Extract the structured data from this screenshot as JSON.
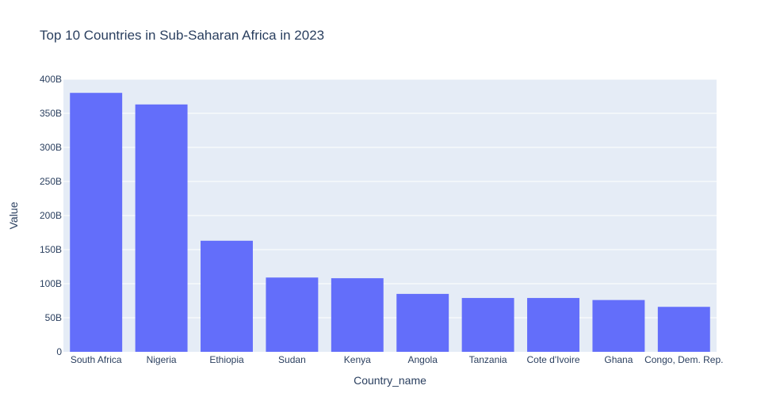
{
  "chart_data": {
    "type": "bar",
    "title": "Top 10 Countries in Sub-Saharan Africa in 2023",
    "xlabel": "Country_name",
    "ylabel": "Value",
    "categories": [
      "South Africa",
      "Nigeria",
      "Ethiopia",
      "Sudan",
      "Kenya",
      "Angola",
      "Tanzania",
      "Cote d'Ivoire",
      "Ghana",
      "Congo, Dem. Rep."
    ],
    "values": [
      380,
      363,
      163,
      109,
      108,
      85,
      79,
      79,
      76,
      66
    ],
    "value_unit": "B",
    "ylim": [
      0,
      400
    ],
    "yticks": [
      0,
      50,
      100,
      150,
      200,
      250,
      300,
      350,
      400
    ],
    "ytick_labels": [
      "0",
      "50B",
      "100B",
      "150B",
      "200B",
      "250B",
      "300B",
      "350B",
      "400B"
    ],
    "grid": true,
    "legend": "none",
    "colors": {
      "bar": "#636efa",
      "plot_bg": "#e5ecf6",
      "grid": "#ffffff",
      "text": "#2a3f5f"
    }
  }
}
